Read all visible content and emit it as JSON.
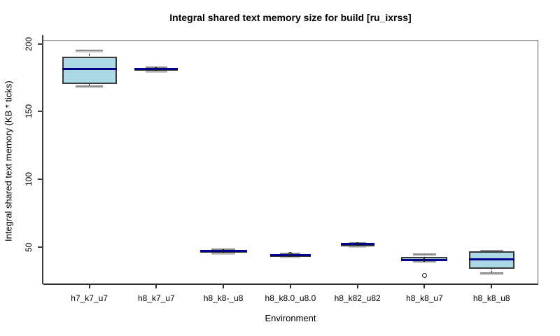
{
  "chart_data": {
    "type": "boxplot",
    "title": "Integral shared text memory size for build [ru_ixrss]",
    "xlabel": "Environment",
    "ylabel": "Integral shared text memory (KB * ticks)",
    "categories": [
      "h7_k7_u7",
      "h8_k7_u7",
      "h8_k8-_u8",
      "h8_k8.0_u8.0",
      "h8_k82_u82",
      "h8_k8_u7",
      "h8_k8_u8"
    ],
    "y_ticks": [
      50,
      100,
      150,
      200
    ],
    "ylim": [
      22.9,
      202.4
    ],
    "grid": false,
    "legend": "none",
    "boxes": [
      {
        "category": "h7_k7_u7",
        "low": 169.0,
        "q1": 170.5,
        "median": 181.5,
        "q3": 190.5,
        "high": 195.0,
        "outliers": []
      },
      {
        "category": "h8_k7_u7",
        "low": 180.2,
        "q1": 180.8,
        "median": 181.4,
        "q3": 182.0,
        "high": 182.6,
        "outliers": []
      },
      {
        "category": "h8_k8-_u8",
        "low": 45.8,
        "q1": 46.2,
        "median": 47.0,
        "q3": 47.8,
        "high": 48.3,
        "outliers": []
      },
      {
        "category": "h8_k8.0_u8.0",
        "low": 43.0,
        "q1": 43.5,
        "median": 44.0,
        "q3": 44.5,
        "high": 45.0,
        "outliers": [
          44.2
        ]
      },
      {
        "category": "h8_k82_u82",
        "low": 51.0,
        "q1": 51.5,
        "median": 52.0,
        "q3": 52.6,
        "high": 53.1,
        "outliers": []
      },
      {
        "category": "h8_k8_u7",
        "low": 39.3,
        "q1": 39.6,
        "median": 40.3,
        "q3": 42.3,
        "high": 44.6,
        "outliers": [
          29.0
        ]
      },
      {
        "category": "h8_k8_u8",
        "low": 30.5,
        "q1": 34.0,
        "median": 41.0,
        "q3": 46.5,
        "high": 47.0,
        "outliers": []
      }
    ],
    "colors": {
      "box_fill": "#ADD8E6",
      "box_border": "#3A3A3A",
      "median": "#00008B",
      "whisker": "#000000",
      "staple": "#8A8A8A",
      "frame": "#5A5A5A",
      "axis": "#3F3F3F",
      "background": "#FFFFFF"
    }
  }
}
